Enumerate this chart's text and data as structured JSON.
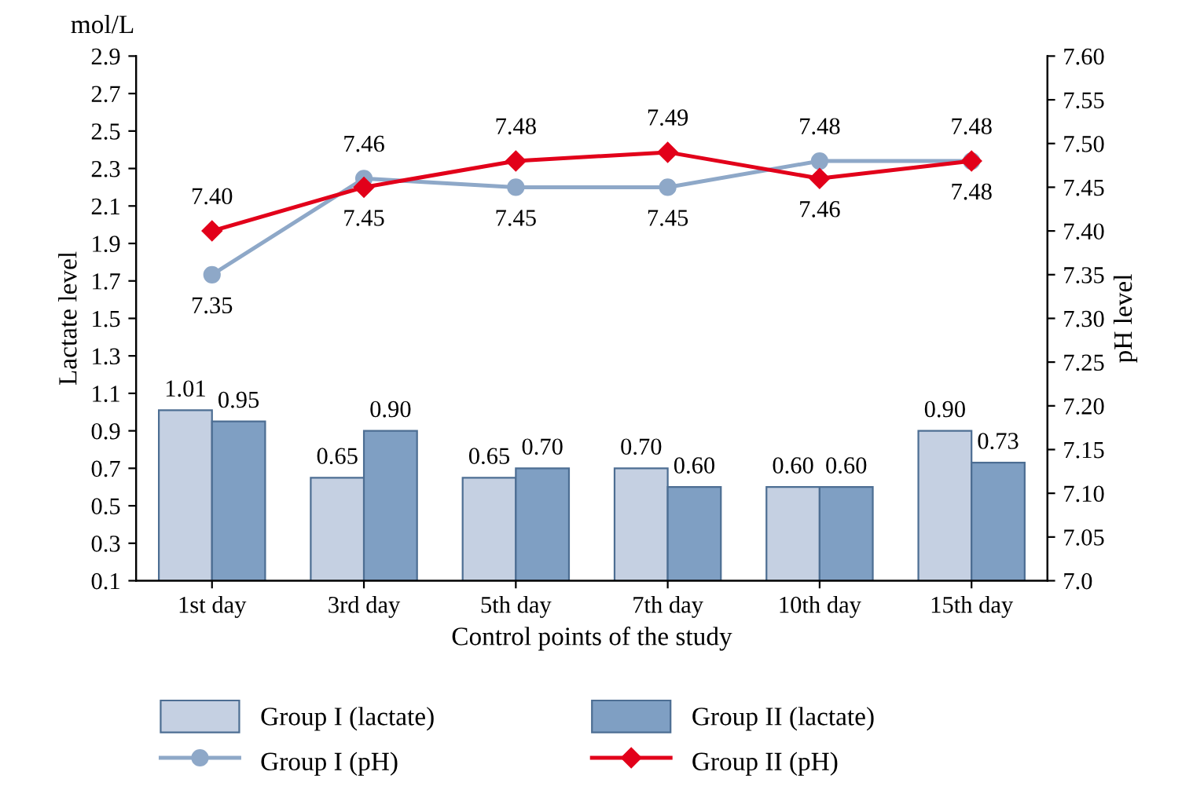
{
  "chart_data": {
    "type": "bar",
    "xlabel": "Control points of the study",
    "ylabel": "Lactate level",
    "y2label": "pH level",
    "annotations": [
      "mol/L"
    ],
    "categories": [
      "1st day",
      "3rd day",
      "5th day",
      "7th day",
      "10th day",
      "15th day"
    ],
    "series": [
      {
        "name": "Group I (lactate)",
        "color": "#c5d0e2",
        "values": [
          1.01,
          0.65,
          0.65,
          0.7,
          0.6,
          0.9
        ],
        "value_labels": [
          "1.01",
          "0.65",
          "0.65",
          "0.70",
          "0.60",
          "0.90"
        ]
      },
      {
        "name": "Group II (lactate)",
        "color": "#7f9fc3",
        "values": [
          0.95,
          0.9,
          0.7,
          0.6,
          0.6,
          0.73
        ],
        "value_labels": [
          "0.95",
          "0.90",
          "0.70",
          "0.60",
          "0.60",
          "0.73"
        ]
      },
      {
        "name": "Group I (pH)",
        "type": "line",
        "axis": "y2",
        "marker": "circle",
        "color": "#8ea8c8",
        "values": [
          7.35,
          7.46,
          7.45,
          7.45,
          7.48,
          7.48
        ],
        "value_labels": [
          "7.35",
          "7.46",
          "7.45",
          "7.45",
          "7.48",
          "7.48"
        ]
      },
      {
        "name": "Group II (pH)",
        "type": "line",
        "axis": "y2",
        "marker": "diamond",
        "color": "#e2001a",
        "values": [
          7.4,
          7.45,
          7.48,
          7.49,
          7.46,
          7.48
        ],
        "value_labels": [
          "7.40",
          "7.45",
          "7.48",
          "7.49",
          "7.46",
          "7.48"
        ]
      }
    ],
    "ylim": [
      0.1,
      2.9
    ],
    "yticks": [
      0.1,
      0.3,
      0.5,
      0.7,
      0.9,
      1.1,
      1.3,
      1.5,
      1.7,
      1.9,
      2.1,
      2.3,
      2.5,
      2.7,
      2.9
    ],
    "y2lim": [
      7.0,
      7.6
    ],
    "y2ticks": [
      {
        "value": 7.0,
        "label": "7.0"
      },
      {
        "value": 7.05,
        "label": "7.05"
      },
      {
        "value": 7.1,
        "label": "7.10"
      },
      {
        "value": 7.15,
        "label": "7.15"
      },
      {
        "value": 7.2,
        "label": "7.20"
      },
      {
        "value": 7.25,
        "label": "7.25"
      },
      {
        "value": 7.3,
        "label": "7.30"
      },
      {
        "value": 7.35,
        "label": "7.35"
      },
      {
        "value": 7.4,
        "label": "7.40"
      },
      {
        "value": 7.45,
        "label": "7.45"
      },
      {
        "value": 7.5,
        "label": "7.50"
      },
      {
        "value": 7.55,
        "label": "7.55"
      },
      {
        "value": 7.6,
        "label": "7.60"
      }
    ],
    "grid": false,
    "legend": "bottom"
  }
}
